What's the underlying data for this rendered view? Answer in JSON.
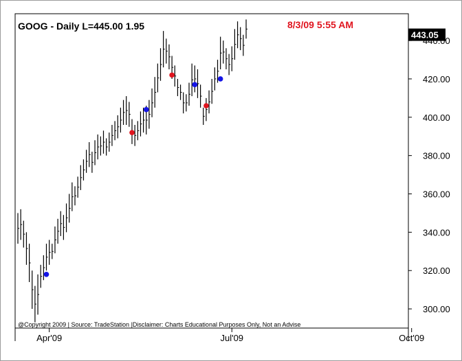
{
  "chart_data": {
    "type": "ohlc",
    "title": "GOOG - Daily  L=445.00  1.95",
    "timestamp": "8/3/09 5:55 AM",
    "last_price": "443.05",
    "credit": "@Copyright 2009 | Source: TradeStation |Disclaimer: Charts Educational Purposes Only, Not an Advise",
    "ylim": [
      290,
      454
    ],
    "y_ticks": [
      {
        "value": 300,
        "label": "300.00"
      },
      {
        "value": 320,
        "label": "320.00"
      },
      {
        "value": 340,
        "label": "340.00"
      },
      {
        "value": 360,
        "label": "360.00"
      },
      {
        "value": 380,
        "label": "380.00"
      },
      {
        "value": 400,
        "label": "400.00"
      },
      {
        "value": 420,
        "label": "420.00"
      },
      {
        "value": 440,
        "label": "440.00"
      }
    ],
    "x_ticks": [
      {
        "bar": 11,
        "label": "Apr'09"
      },
      {
        "bar": 75,
        "label": "Jul'09"
      },
      {
        "bar": 138,
        "label": "Oct'09"
      }
    ],
    "grid": false,
    "colors": {
      "up_signal": "#e0141e",
      "down_signal": "#1414e6",
      "bars": "#000000",
      "last_box": "#000000"
    },
    "bars": [
      {
        "h": 350,
        "l": 334
      },
      {
        "h": 352,
        "l": 336
      },
      {
        "h": 346,
        "l": 332
      },
      {
        "h": 340,
        "l": 323
      },
      {
        "h": 334,
        "l": 314
      },
      {
        "h": 320,
        "l": 300
      },
      {
        "h": 312,
        "l": 293
      },
      {
        "h": 318,
        "l": 297
      },
      {
        "h": 323,
        "l": 311
      },
      {
        "h": 328,
        "l": 315
      },
      {
        "h": 334,
        "l": 320
      },
      {
        "h": 336,
        "l": 323
      },
      {
        "h": 334,
        "l": 326
      },
      {
        "h": 343,
        "l": 329
      },
      {
        "h": 347,
        "l": 334
      },
      {
        "h": 351,
        "l": 338
      },
      {
        "h": 349,
        "l": 336
      },
      {
        "h": 355,
        "l": 340
      },
      {
        "h": 360,
        "l": 345
      },
      {
        "h": 366,
        "l": 351
      },
      {
        "h": 364,
        "l": 354
      },
      {
        "h": 369,
        "l": 358
      },
      {
        "h": 375,
        "l": 362
      },
      {
        "h": 378,
        "l": 367
      },
      {
        "h": 383,
        "l": 371
      },
      {
        "h": 387,
        "l": 374
      },
      {
        "h": 382,
        "l": 371
      },
      {
        "h": 388,
        "l": 375
      },
      {
        "h": 391,
        "l": 378
      },
      {
        "h": 390,
        "l": 380
      },
      {
        "h": 393,
        "l": 381
      },
      {
        "h": 389,
        "l": 380
      },
      {
        "h": 392,
        "l": 382
      },
      {
        "h": 396,
        "l": 385
      },
      {
        "h": 398,
        "l": 388
      },
      {
        "h": 401,
        "l": 389
      },
      {
        "h": 405,
        "l": 392
      },
      {
        "h": 409,
        "l": 396
      },
      {
        "h": 411,
        "l": 396
      },
      {
        "h": 408,
        "l": 395
      },
      {
        "h": 399,
        "l": 386
      },
      {
        "h": 396,
        "l": 385
      },
      {
        "h": 398,
        "l": 388
      },
      {
        "h": 403,
        "l": 390
      },
      {
        "h": 405,
        "l": 392
      },
      {
        "h": 406,
        "l": 391
      },
      {
        "h": 409,
        "l": 394
      },
      {
        "h": 415,
        "l": 400
      },
      {
        "h": 421,
        "l": 405
      },
      {
        "h": 428,
        "l": 413
      },
      {
        "h": 436,
        "l": 419
      },
      {
        "h": 445,
        "l": 426
      },
      {
        "h": 441,
        "l": 428
      },
      {
        "h": 438,
        "l": 425
      },
      {
        "h": 432,
        "l": 420
      },
      {
        "h": 427,
        "l": 416
      },
      {
        "h": 420,
        "l": 411
      },
      {
        "h": 417,
        "l": 409
      },
      {
        "h": 413,
        "l": 402
      },
      {
        "h": 412,
        "l": 403
      },
      {
        "h": 418,
        "l": 406
      },
      {
        "h": 428,
        "l": 411
      },
      {
        "h": 427,
        "l": 413
      },
      {
        "h": 425,
        "l": 410
      },
      {
        "h": 417,
        "l": 405
      },
      {
        "h": 405,
        "l": 396
      },
      {
        "h": 410,
        "l": 398
      },
      {
        "h": 414,
        "l": 402
      },
      {
        "h": 420,
        "l": 407
      },
      {
        "h": 426,
        "l": 414
      },
      {
        "h": 430,
        "l": 418
      },
      {
        "h": 442,
        "l": 425
      },
      {
        "h": 440,
        "l": 428
      },
      {
        "h": 436,
        "l": 425
      },
      {
        "h": 433,
        "l": 422
      },
      {
        "h": 437,
        "l": 424
      },
      {
        "h": 446,
        "l": 430
      },
      {
        "h": 450,
        "l": 436
      },
      {
        "h": 447,
        "l": 435
      },
      {
        "h": 443,
        "l": 432
      },
      {
        "h": 451,
        "l": 441
      }
    ],
    "signals": [
      {
        "bar": 10,
        "price": 318,
        "kind": "down_signal"
      },
      {
        "bar": 40,
        "price": 392,
        "kind": "up_signal"
      },
      {
        "bar": 45,
        "price": 404,
        "kind": "down_signal"
      },
      {
        "bar": 54,
        "price": 422,
        "kind": "up_signal"
      },
      {
        "bar": 62,
        "price": 417,
        "kind": "down_signal"
      },
      {
        "bar": 66,
        "price": 406,
        "kind": "up_signal"
      },
      {
        "bar": 71,
        "price": 420,
        "kind": "down_signal"
      }
    ]
  }
}
